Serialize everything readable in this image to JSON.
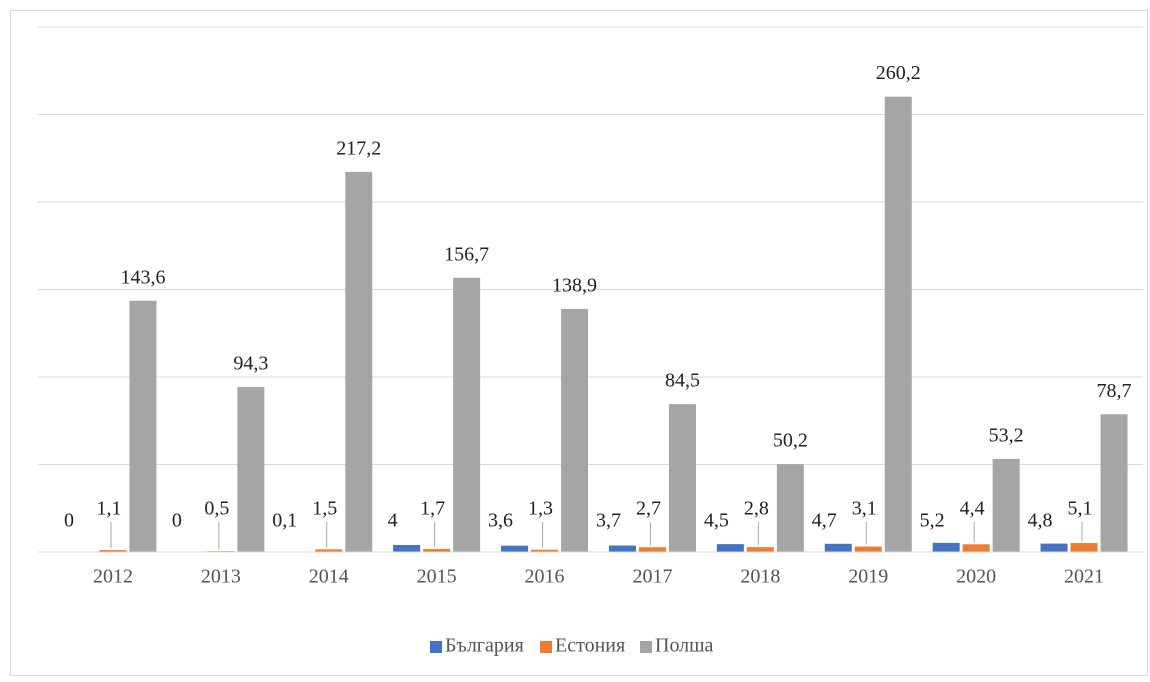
{
  "chart_data": {
    "type": "bar",
    "categories": [
      "2012",
      "2013",
      "2014",
      "2015",
      "2016",
      "2017",
      "2018",
      "2019",
      "2020",
      "2021"
    ],
    "series": [
      {
        "name": "България",
        "color": "#4472c4",
        "values": [
          0,
          0,
          0.1,
          4,
          3.6,
          3.7,
          4.5,
          4.7,
          5.2,
          4.8
        ],
        "value_labels": [
          "0",
          "0",
          "0,1",
          "4",
          "3,6",
          "3,7",
          "4,5",
          "4,7",
          "5,2",
          "4,8"
        ]
      },
      {
        "name": "Естония",
        "color": "#ed7d31",
        "values": [
          1.1,
          0.5,
          1.5,
          1.7,
          1.3,
          2.7,
          2.8,
          3.1,
          4.4,
          5.1
        ],
        "value_labels": [
          "1,1",
          "0,5",
          "1,5",
          "1,7",
          "1,3",
          "2,7",
          "2,8",
          "3,1",
          "4,4",
          "5,1"
        ]
      },
      {
        "name": "Полша",
        "color": "#a5a5a5",
        "values": [
          143.6,
          94.3,
          217.2,
          156.7,
          138.9,
          84.5,
          50.2,
          260.2,
          53.2,
          78.7
        ],
        "value_labels": [
          "143,6",
          "94,3",
          "217,2",
          "156,7",
          "138,9",
          "84,5",
          "50,2",
          "260,2",
          "53,2",
          "78,7"
        ]
      }
    ],
    "ylim": [
      0,
      300
    ],
    "yticks": [
      0,
      50,
      100,
      150,
      200,
      250,
      300
    ],
    "grid": true,
    "legend": "bottom"
  }
}
